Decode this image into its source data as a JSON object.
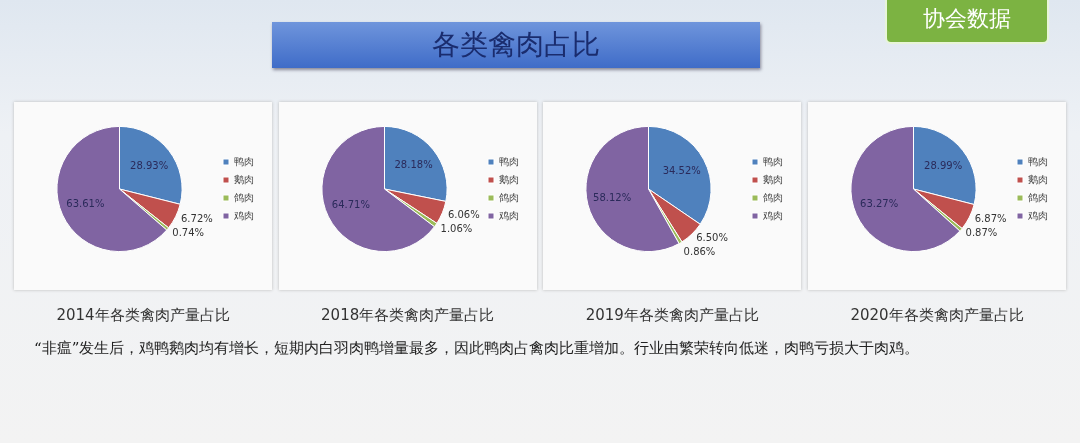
{
  "chart_data": [
    {
      "type": "other",
      "title": "各类禽肉占比",
      "annotations": [
        "协会数据"
      ]
    },
    {
      "type": "pie",
      "title": "2014年各类禽肉产量占比",
      "categories": [
        "鸭肉",
        "鹅肉",
        "鸽肉",
        "鸡肉"
      ],
      "values": [
        28.93,
        6.72,
        0.74,
        63.61
      ],
      "colors": [
        "#4f81bd",
        "#c0504d",
        "#9bbb59",
        "#8064a2"
      ],
      "value_labels": [
        "28.93%",
        "6.72%",
        "0.74%",
        "63.61%"
      ],
      "legend": "right"
    },
    {
      "type": "pie",
      "title": "2018年各类禽肉产量占比",
      "categories": [
        "鸭肉",
        "鹅肉",
        "鸽肉",
        "鸡肉"
      ],
      "values": [
        28.18,
        6.06,
        1.06,
        64.71
      ],
      "colors": [
        "#4f81bd",
        "#c0504d",
        "#9bbb59",
        "#8064a2"
      ],
      "value_labels": [
        "28.18%",
        "6.06%",
        "1.06%",
        "64.71%"
      ],
      "legend": "right"
    },
    {
      "type": "pie",
      "title": "2019年各类禽肉产量占比",
      "categories": [
        "鸭肉",
        "鹅肉",
        "鸽肉",
        "鸡肉"
      ],
      "values": [
        34.52,
        6.5,
        0.86,
        58.12
      ],
      "colors": [
        "#4f81bd",
        "#c0504d",
        "#9bbb59",
        "#8064a2"
      ],
      "value_labels": [
        "34.52%",
        "6.50%",
        "0.86%",
        "58.12%"
      ],
      "legend": "right"
    },
    {
      "type": "pie",
      "title": "2020年各类禽肉产量占比",
      "categories": [
        "鸭肉",
        "鹅肉",
        "鸽肉",
        "鸡肉"
      ],
      "values": [
        28.99,
        6.87,
        0.87,
        63.27
      ],
      "colors": [
        "#4f81bd",
        "#c0504d",
        "#9bbb59",
        "#8064a2"
      ],
      "value_labels": [
        "28.99%",
        "6.87%",
        "0.87%",
        "63.27%"
      ],
      "legend": "right"
    },
    {
      "type": "other",
      "annotations": [
        "“非瘟”发生后，鸡鸭鹅肉均有增长，短期内白羽肉鸭增量最多，因此鸭肉占禽肉比重增加。行业由繁荣转向低迷，肉鸭亏损大于肉鸡。"
      ]
    }
  ]
}
